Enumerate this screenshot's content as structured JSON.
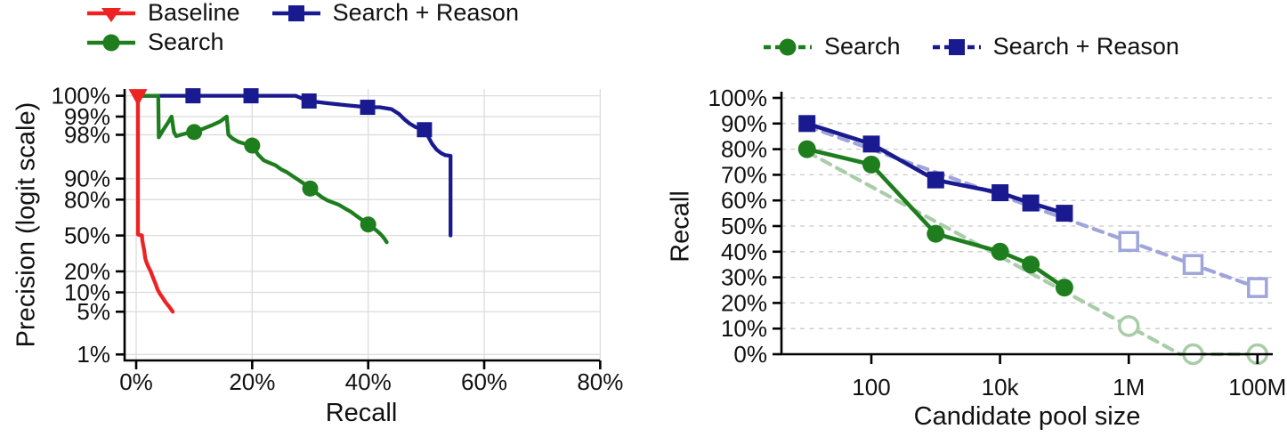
{
  "figure": {
    "kind": "two-panel scientific figure",
    "background": "#ffffff"
  },
  "colors": {
    "baseline": "#ee2222",
    "search": "#1e7e1e",
    "search_reason": "#1a1a90",
    "search_fit": "#a8cda8",
    "search_reason_fit": "#9fa5da",
    "grid": "#dcdcdc",
    "grid_dashed": "#c9c9c9",
    "axis": "#000000",
    "text": "#111111"
  },
  "chart_data": [
    {
      "id": "precision-recall",
      "type": "line",
      "title": "",
      "xlabel": "Recall",
      "ylabel": "Precision (logit scale)",
      "x_scale": "linear",
      "y_scale": "logit",
      "xlim": [
        -2,
        80
      ],
      "ylim": [
        1,
        100
      ],
      "grid": true,
      "legend_position": "top-left two rows",
      "x_tick_labels": [
        "0%",
        "20%",
        "40%",
        "60%",
        "80%"
      ],
      "x_tick_values": [
        0,
        20,
        40,
        60,
        80
      ],
      "y_tick_labels": [
        "100%",
        "99%",
        "98%",
        "90%",
        "80%",
        "50%",
        "20%",
        "10%",
        "5%",
        "1%"
      ],
      "y_tick_values": [
        100,
        99,
        98,
        90,
        80,
        50,
        20,
        10,
        5,
        1
      ],
      "series": [
        {
          "name": "Baseline",
          "color_key": "baseline",
          "marker": "triangle-down",
          "line": "solid",
          "points": [
            [
              0.31,
              100
            ],
            [
              0.31,
              51
            ],
            [
              1,
              50
            ],
            [
              1.05,
              46
            ],
            [
              1.2,
              41
            ],
            [
              1.4,
              35.5
            ],
            [
              1.55,
              29.5
            ],
            [
              1.8,
              26
            ],
            [
              2.1,
              23
            ],
            [
              2.5,
              20
            ],
            [
              2.8,
              17.3
            ],
            [
              3.1,
              15
            ],
            [
              3.4,
              13
            ],
            [
              3.7,
              11
            ],
            [
              4.1,
              9.5
            ],
            [
              4.6,
              8.2
            ],
            [
              5.1,
              7
            ],
            [
              5.7,
              6
            ],
            [
              6.3,
              5
            ]
          ],
          "marker_points": [
            [
              0.31,
              100
            ]
          ]
        },
        {
          "name": "Search",
          "color_key": "search",
          "marker": "circle",
          "line": "solid",
          "points": [
            [
              0.1,
              100
            ],
            [
              3.8,
              100
            ],
            [
              3.9,
              97.8
            ],
            [
              4.6,
              98.3
            ],
            [
              5.4,
              98.7
            ],
            [
              6.1,
              99
            ],
            [
              6.5,
              98.2
            ],
            [
              6.9,
              97.9
            ],
            [
              7.7,
              98
            ],
            [
              8.6,
              98.1
            ],
            [
              10,
              98.2
            ],
            [
              11.5,
              98.4
            ],
            [
              13,
              98.6
            ],
            [
              14.5,
              98.8
            ],
            [
              15.6,
              99
            ],
            [
              15.9,
              98
            ],
            [
              16.6,
              97.7
            ],
            [
              17.6,
              97.4
            ],
            [
              18.7,
              97.2
            ],
            [
              20,
              97
            ],
            [
              21,
              95.8
            ],
            [
              22,
              94.8
            ],
            [
              23,
              94.3
            ],
            [
              24,
              93.8
            ],
            [
              25,
              92.8
            ],
            [
              26,
              92
            ],
            [
              27,
              90.8
            ],
            [
              28,
              89.5
            ],
            [
              29,
              88
            ],
            [
              30,
              86
            ],
            [
              31,
              84
            ],
            [
              32,
              81.5
            ],
            [
              33,
              79.5
            ],
            [
              34,
              78
            ],
            [
              35,
              76.5
            ],
            [
              36,
              74
            ],
            [
              37,
              71.5
            ],
            [
              38,
              68
            ],
            [
              39,
              64.5
            ],
            [
              40,
              60.5
            ],
            [
              40.8,
              57.5
            ],
            [
              41.5,
              54.5
            ],
            [
              42.2,
              51
            ],
            [
              42.8,
              47
            ],
            [
              43.2,
              43.5
            ]
          ],
          "marker_points": [
            [
              10,
              98.2
            ],
            [
              20,
              97
            ],
            [
              30,
              86
            ],
            [
              40,
              60.5
            ]
          ]
        },
        {
          "name": "Search + Reason",
          "color_key": "search_reason",
          "marker": "square",
          "line": "solid",
          "points": [
            [
              0.1,
              100
            ],
            [
              14.9,
              100
            ],
            [
              15.5,
              99.7
            ],
            [
              16.3,
              99.6
            ],
            [
              16.9,
              99.95
            ],
            [
              17.3,
              100
            ],
            [
              26.7,
              100
            ],
            [
              27.5,
              99.6
            ],
            [
              28.6,
              99.5
            ],
            [
              29.8,
              99.45
            ],
            [
              33,
              99.4
            ],
            [
              36.5,
              99.35
            ],
            [
              39.9,
              99.3
            ],
            [
              42,
              99.3
            ],
            [
              44,
              99.25
            ],
            [
              45.3,
              99.1
            ],
            [
              46.2,
              98.9
            ],
            [
              47.1,
              98.7
            ],
            [
              48.2,
              98.5
            ],
            [
              49.7,
              98.35
            ],
            [
              50.3,
              97.9
            ],
            [
              51,
              97.2
            ],
            [
              51.8,
              96.5
            ],
            [
              52.6,
              96
            ],
            [
              53.3,
              95.7
            ],
            [
              54.2,
              95.6
            ],
            [
              54.2,
              50
            ]
          ],
          "marker_points": [
            [
              9.8,
              100
            ],
            [
              19.8,
              100
            ],
            [
              29.8,
              99.45
            ],
            [
              39.9,
              99.3
            ],
            [
              49.7,
              98.35
            ]
          ]
        }
      ]
    },
    {
      "id": "recall-vs-pool",
      "type": "line",
      "title": "",
      "xlabel": "Candidate pool size",
      "ylabel": "Recall",
      "x_scale": "log",
      "y_scale": "linear",
      "ylim": [
        0,
        100
      ],
      "grid": "horizontal-dashed",
      "legend_position": "top",
      "x_tick_labels": [
        "100",
        "10k",
        "1M",
        "100M"
      ],
      "x_tick_values": [
        100,
        10000,
        1000000,
        100000000
      ],
      "y_tick_labels": [
        "0%",
        "10%",
        "20%",
        "30%",
        "40%",
        "50%",
        "60%",
        "70%",
        "80%",
        "90%",
        "100%"
      ],
      "y_tick_values": [
        0,
        10,
        20,
        30,
        40,
        50,
        60,
        70,
        80,
        90,
        100
      ],
      "series": [
        {
          "name": "Search",
          "color_key": "search",
          "fit_color_key": "search_fit",
          "marker": "circle",
          "line": "solid measured, dashed extrapolation with hollow markers",
          "solid_points": [
            [
              10,
              80
            ],
            [
              100,
              74
            ],
            [
              1000,
              47
            ],
            [
              10000,
              40
            ],
            [
              30000,
              35
            ],
            [
              100000,
              26
            ]
          ],
          "open_points": [
            [
              1000000,
              11
            ],
            [
              10000000,
              0
            ],
            [
              100000000,
              0
            ]
          ],
          "fit_points": [
            [
              10,
              79
            ],
            [
              6300000,
              0
            ],
            [
              100000000,
              0
            ]
          ]
        },
        {
          "name": "Search + Reason",
          "color_key": "search_reason",
          "fit_color_key": "search_reason_fit",
          "marker": "square",
          "line": "solid measured, dashed extrapolation with hollow markers",
          "solid_points": [
            [
              10,
              90
            ],
            [
              100,
              82
            ],
            [
              1000,
              68
            ],
            [
              10000,
              63
            ],
            [
              30000,
              59
            ],
            [
              100000,
              55
            ]
          ],
          "open_points": [
            [
              1000000,
              44
            ],
            [
              10000000,
              35
            ],
            [
              100000000,
              26
            ]
          ],
          "fit_points": [
            [
              10,
              89
            ],
            [
              100000000,
              26
            ]
          ]
        }
      ]
    }
  ]
}
